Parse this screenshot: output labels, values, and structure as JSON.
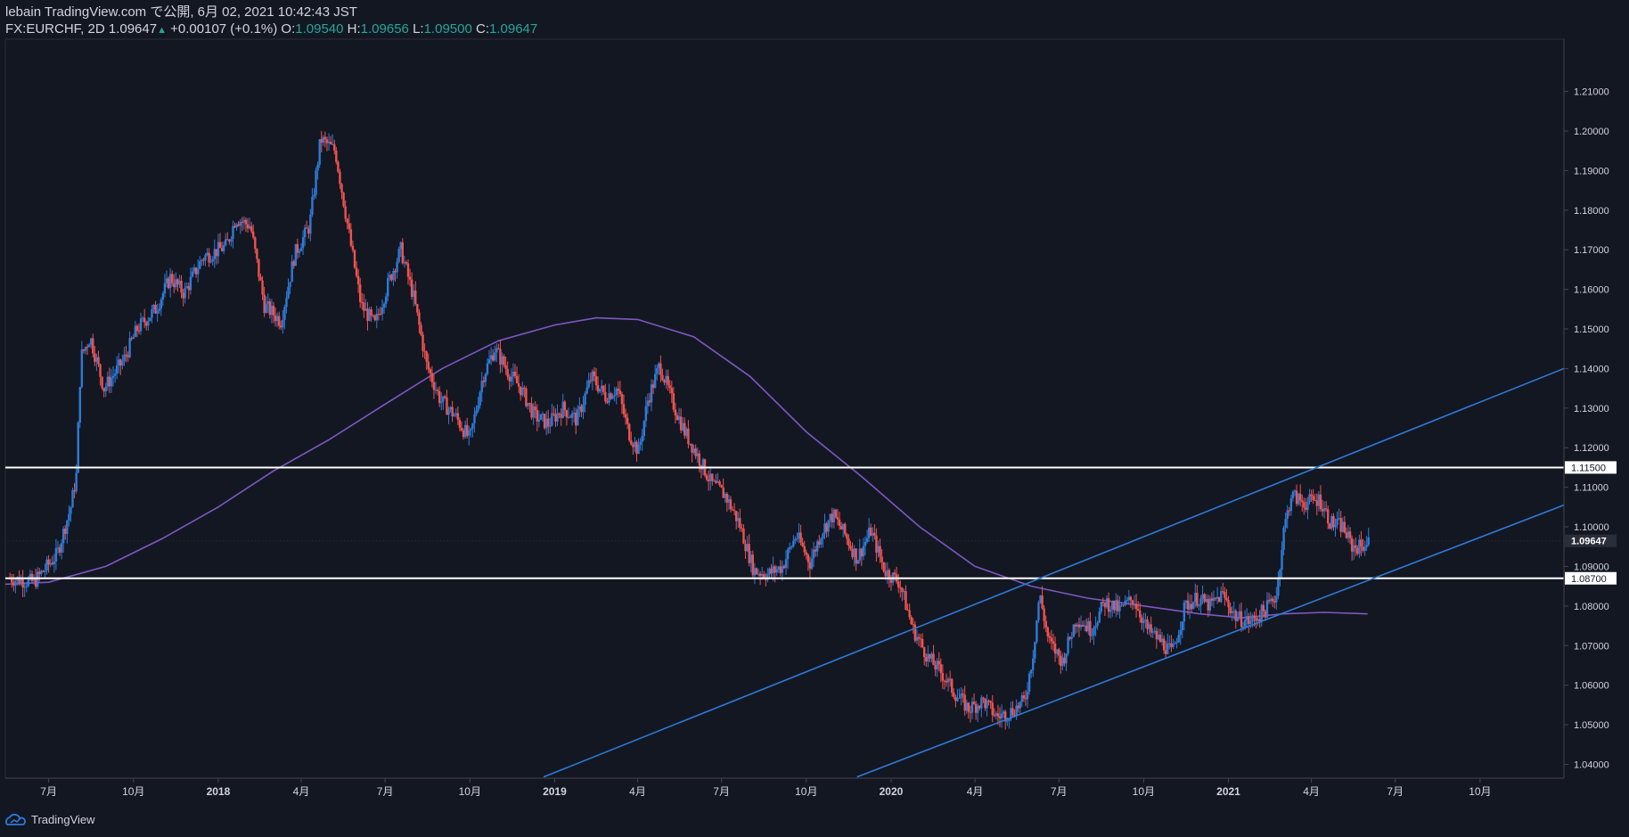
{
  "header": {
    "publisher_line": "lebain TradingView.com で公開, 6月 02, 2021 10:42:43 JST",
    "symbol": "FX:EURCHF, 2D",
    "last": "1.09647",
    "change": "+0.00107 (+0.1%)",
    "o_label": "O:",
    "o_value": "1.09540",
    "h_label": "H:",
    "h_value": "1.09656",
    "l_label": "L:",
    "l_value": "1.09500",
    "c_label": "C:",
    "c_value": "1.09647"
  },
  "footer": {
    "brand": "TradingView"
  },
  "colors": {
    "background": "#131722",
    "up": "#2e7bd8",
    "down": "#ef5350",
    "moving_average": "#7e57c2",
    "trendline": "#2e7bd8",
    "horizontal_line": "#ffffff",
    "text": "#d1d4dc"
  },
  "chart_data": {
    "type": "candlestick",
    "symbol": "FX:EURCHF",
    "interval": "2D",
    "x_tick_labels": [
      "7月",
      "10月",
      "2018",
      "4月",
      "7月",
      "10月",
      "2019",
      "4月",
      "7月",
      "10月",
      "2020",
      "4月",
      "7月",
      "10月",
      "2021",
      "4月",
      "7月",
      "10月"
    ],
    "y_ticks": [
      1.04,
      1.05,
      1.06,
      1.07,
      1.08,
      1.09,
      1.1,
      1.11,
      1.12,
      1.13,
      1.14,
      1.15,
      1.16,
      1.17,
      1.18,
      1.19,
      1.2,
      1.21
    ],
    "y_tick_labels": [
      "1.04000",
      "1.05000",
      "1.06000",
      "1.07000",
      "1.08000",
      "1.09000",
      "1.10000",
      "1.11000",
      "1.12000",
      "1.13000",
      "1.14000",
      "1.15000",
      "1.16000",
      "1.17000",
      "1.18000",
      "1.19000",
      "1.20000",
      "1.21000"
    ],
    "ylim": [
      1.0365,
      1.2232
    ],
    "x_range": [
      "2017-05-15",
      "2021-12-31"
    ],
    "price_path": [
      [
        "2017-05-20",
        1.087
      ],
      [
        "2017-06-15",
        1.086
      ],
      [
        "2017-07-10",
        1.093
      ],
      [
        "2017-07-25",
        1.105
      ],
      [
        "2017-07-31",
        1.113
      ],
      [
        "2017-08-05",
        1.143
      ],
      [
        "2017-08-15",
        1.148
      ],
      [
        "2017-08-30",
        1.135
      ],
      [
        "2017-09-20",
        1.142
      ],
      [
        "2017-10-05",
        1.15
      ],
      [
        "2017-10-25",
        1.155
      ],
      [
        "2017-11-10",
        1.163
      ],
      [
        "2017-11-25",
        1.159
      ],
      [
        "2017-12-15",
        1.168
      ],
      [
        "2018-01-10",
        1.171
      ],
      [
        "2018-01-20",
        1.178
      ],
      [
        "2018-02-05",
        1.176
      ],
      [
        "2018-02-20",
        1.156
      ],
      [
        "2018-03-10",
        1.152
      ],
      [
        "2018-03-25",
        1.169
      ],
      [
        "2018-04-10",
        1.176
      ],
      [
        "2018-04-22",
        1.198
      ],
      [
        "2018-05-08",
        1.195
      ],
      [
        "2018-05-25",
        1.171
      ],
      [
        "2018-06-05",
        1.156
      ],
      [
        "2018-06-20",
        1.151
      ],
      [
        "2018-07-05",
        1.162
      ],
      [
        "2018-07-18",
        1.17
      ],
      [
        "2018-08-01",
        1.158
      ],
      [
        "2018-08-15",
        1.141
      ],
      [
        "2018-08-30",
        1.132
      ],
      [
        "2018-09-15",
        1.128
      ],
      [
        "2018-10-01",
        1.122
      ],
      [
        "2018-10-15",
        1.138
      ],
      [
        "2018-10-28",
        1.145
      ],
      [
        "2018-11-12",
        1.139
      ],
      [
        "2018-11-25",
        1.135
      ],
      [
        "2018-12-10",
        1.128
      ],
      [
        "2018-12-25",
        1.126
      ],
      [
        "2019-01-10",
        1.13
      ],
      [
        "2019-01-25",
        1.127
      ],
      [
        "2019-02-10",
        1.138
      ],
      [
        "2019-02-25",
        1.133
      ],
      [
        "2019-03-10",
        1.135
      ],
      [
        "2019-03-22",
        1.124
      ],
      [
        "2019-04-02",
        1.119
      ],
      [
        "2019-04-12",
        1.132
      ],
      [
        "2019-04-25",
        1.141
      ],
      [
        "2019-05-08",
        1.132
      ],
      [
        "2019-05-22",
        1.124
      ],
      [
        "2019-06-05",
        1.118
      ],
      [
        "2019-06-20",
        1.111
      ],
      [
        "2019-07-05",
        1.108
      ],
      [
        "2019-07-20",
        1.101
      ],
      [
        "2019-08-05",
        1.089
      ],
      [
        "2019-08-20",
        1.088
      ],
      [
        "2019-09-05",
        1.09
      ],
      [
        "2019-09-20",
        1.098
      ],
      [
        "2019-10-05",
        1.091
      ],
      [
        "2019-10-18",
        1.099
      ],
      [
        "2019-10-30",
        1.103
      ],
      [
        "2019-11-12",
        1.098
      ],
      [
        "2019-11-25",
        1.092
      ],
      [
        "2019-12-10",
        1.099
      ],
      [
        "2019-12-25",
        1.089
      ],
      [
        "2020-01-10",
        1.086
      ],
      [
        "2020-01-25",
        1.074
      ],
      [
        "2020-02-10",
        1.067
      ],
      [
        "2020-02-25",
        1.063
      ],
      [
        "2020-03-10",
        1.058
      ],
      [
        "2020-03-25",
        1.054
      ],
      [
        "2020-04-10",
        1.056
      ],
      [
        "2020-04-25",
        1.052
      ],
      [
        "2020-05-08",
        1.053
      ],
      [
        "2020-05-25",
        1.056
      ],
      [
        "2020-06-03",
        1.068
      ],
      [
        "2020-06-10",
        1.083
      ],
      [
        "2020-06-20",
        1.071
      ],
      [
        "2020-07-05",
        1.066
      ],
      [
        "2020-07-20",
        1.077
      ],
      [
        "2020-08-05",
        1.074
      ],
      [
        "2020-08-20",
        1.081
      ],
      [
        "2020-09-05",
        1.079
      ],
      [
        "2020-09-20",
        1.082
      ],
      [
        "2020-10-05",
        1.074
      ],
      [
        "2020-10-20",
        1.071
      ],
      [
        "2020-11-01",
        1.068
      ],
      [
        "2020-11-15",
        1.08
      ],
      [
        "2020-11-28",
        1.082
      ],
      [
        "2020-12-12",
        1.08
      ],
      [
        "2020-12-25",
        1.083
      ],
      [
        "2021-01-10",
        1.077
      ],
      [
        "2021-01-25",
        1.076
      ],
      [
        "2021-02-10",
        1.079
      ],
      [
        "2021-02-22",
        1.083
      ],
      [
        "2021-03-02",
        1.099
      ],
      [
        "2021-03-10",
        1.108
      ],
      [
        "2021-03-25",
        1.106
      ],
      [
        "2021-04-10",
        1.107
      ],
      [
        "2021-04-22",
        1.101
      ],
      [
        "2021-05-05",
        1.1
      ],
      [
        "2021-05-15",
        1.095
      ],
      [
        "2021-05-25",
        1.095
      ],
      [
        "2021-06-02",
        1.09647
      ]
    ],
    "moving_average": [
      [
        "2017-05-15",
        1.0855
      ],
      [
        "2017-07-01",
        1.086
      ],
      [
        "2017-09-01",
        1.09
      ],
      [
        "2017-11-01",
        1.097
      ],
      [
        "2018-01-01",
        1.105
      ],
      [
        "2018-03-01",
        1.114
      ],
      [
        "2018-05-01",
        1.122
      ],
      [
        "2018-07-01",
        1.131
      ],
      [
        "2018-09-01",
        1.14
      ],
      [
        "2018-11-01",
        1.147
      ],
      [
        "2019-01-01",
        1.151
      ],
      [
        "2019-02-15",
        1.1528
      ],
      [
        "2019-04-01",
        1.1524
      ],
      [
        "2019-06-01",
        1.148
      ],
      [
        "2019-08-01",
        1.138
      ],
      [
        "2019-10-01",
        1.124
      ],
      [
        "2019-12-01",
        1.1125
      ],
      [
        "2020-02-01",
        1.1
      ],
      [
        "2020-04-01",
        1.09
      ],
      [
        "2020-06-01",
        1.085
      ],
      [
        "2020-08-01",
        1.082
      ],
      [
        "2020-10-01",
        1.08
      ],
      [
        "2020-12-01",
        1.078
      ],
      [
        "2021-01-15",
        1.077
      ],
      [
        "2021-03-01",
        1.078
      ],
      [
        "2021-04-15",
        1.0784
      ],
      [
        "2021-06-01",
        1.078
      ]
    ],
    "horizontal_levels": [
      {
        "value": 1.115,
        "label": "1.11500"
      },
      {
        "value": 1.087,
        "label": "1.08700"
      }
    ],
    "trendlines": [
      {
        "from": [
          "2018-12-20",
          1.0368
        ],
        "to": [
          "2021-12-31",
          1.14
        ]
      },
      {
        "from": [
          "2019-11-25",
          1.0368
        ],
        "to": [
          "2021-12-31",
          1.1055
        ]
      }
    ],
    "last_price": {
      "value": 1.09647,
      "label": "1.09647"
    }
  }
}
